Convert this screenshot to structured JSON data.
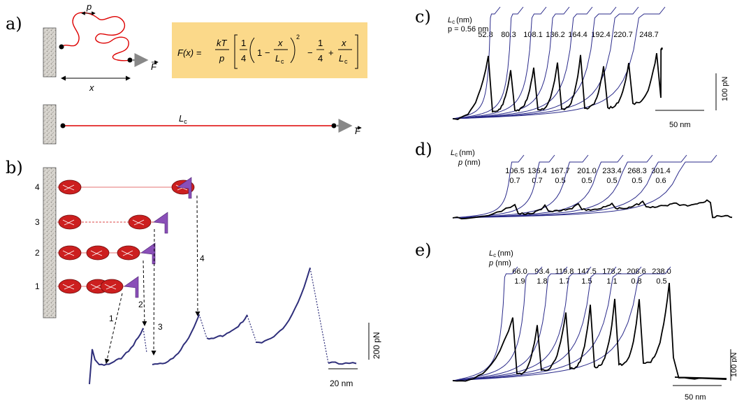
{
  "panels": {
    "a": {
      "letter": "a)",
      "persistence_symbol": "p",
      "force_symbol": "F",
      "extension_symbol": "x",
      "contour_symbol": "L",
      "contour_sub": "c"
    },
    "b": {
      "letter": "b)",
      "states": [
        "1",
        "2",
        "3",
        "4"
      ],
      "arrows": [
        "1",
        "2",
        "3",
        "4"
      ],
      "scale_y": "200 pN",
      "scale_x": "20 nm"
    },
    "c": {
      "letter": "c)",
      "lc_header": "L",
      "lc_header_sub": "c",
      "lc_unit": "(nm)",
      "p_text": "p = 0.56 nm",
      "lc_values": [
        "52.8",
        "80.3",
        "108.1",
        "136.2",
        "164.4",
        "192.4",
        "220.7",
        "248.7"
      ],
      "scale_y": "100 pN",
      "scale_x": "50 nm"
    },
    "d": {
      "letter": "d)",
      "lc_header": "L",
      "lc_header_sub": "c",
      "lc_unit": "(nm)",
      "p_header": "p",
      "p_unit": "(nm)",
      "lc_values": [
        "106.5",
        "136.4",
        "167.7",
        "201.0",
        "233.4",
        "268.3",
        "301.4"
      ],
      "p_values": [
        "0.7",
        "0.7",
        "0.5",
        "0.5",
        "0.5",
        "0.5",
        "0.6"
      ]
    },
    "e": {
      "letter": "e)",
      "lc_header": "L",
      "lc_header_sub": "c",
      "lc_unit": "(nm)",
      "p_header": "p",
      "p_unit": "(nm)",
      "lc_values": [
        "66.0",
        "93.4",
        "119.8",
        "147.5",
        "178.2",
        "208.6",
        "238.0"
      ],
      "p_values": [
        "1.9",
        "1.8",
        "1.7",
        "1.5",
        "1.1",
        "0.8",
        "0.5"
      ],
      "scale_y": "100 pN",
      "scale_x": "50 nm"
    }
  },
  "equation": {
    "lhs": "F(x) = ",
    "kT": "kT",
    "p": "p",
    "one": "1",
    "four": "4",
    "minus": "−",
    "plus": "+",
    "x": "x",
    "L": "L",
    "c": "c",
    "sq": "2"
  },
  "colors": {
    "equation_box": "#fbd98a",
    "tether": "#dd0000",
    "wlc": "#2a2a8a",
    "protein": "#cc1f1f",
    "cantilever": "#8a4fb8"
  }
}
